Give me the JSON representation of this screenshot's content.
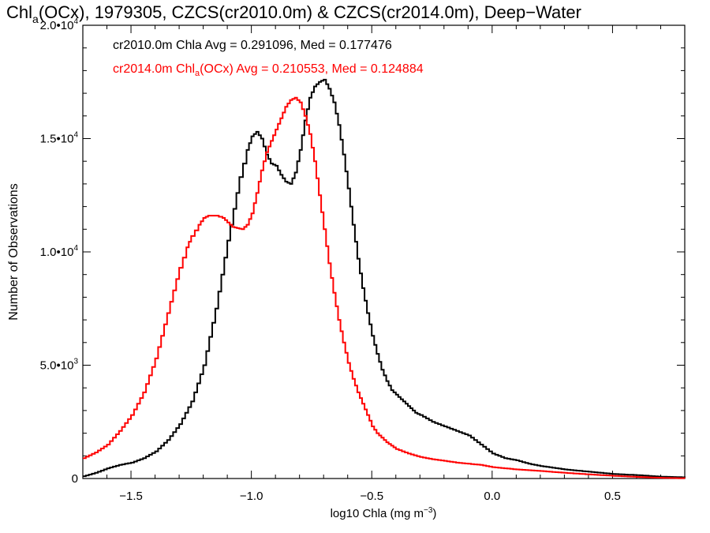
{
  "chart_data": {
    "type": "line",
    "title_parts": {
      "pre": "Chl",
      "sub": "a",
      "post": "(OCx), 1979305, CZCS(cr2010.0m) & CZCS(cr2014.0m), Deep−Water"
    },
    "xlabel_parts": {
      "pre": "log10 Chla (mg m",
      "sup": "−3",
      "post": ")"
    },
    "ylabel": "Number of Observations",
    "xlim": [
      -1.7,
      0.8
    ],
    "ylim": [
      0,
      20000
    ],
    "x_ticks": [
      {
        "value": -1.5,
        "label": "−1.5"
      },
      {
        "value": -1.0,
        "label": "−1.0"
      },
      {
        "value": -0.5,
        "label": "−0.5"
      },
      {
        "value": 0.0,
        "label": "0.0"
      },
      {
        "value": 0.5,
        "label": "0.5"
      }
    ],
    "x_minor_step": 0.1,
    "y_ticks": [
      {
        "value": 0,
        "base": "0",
        "exp": ""
      },
      {
        "value": 5000,
        "base": "5.0•10",
        "exp": "3"
      },
      {
        "value": 10000,
        "base": "1.0•10",
        "exp": "4"
      },
      {
        "value": 15000,
        "base": "1.5•10",
        "exp": "4"
      },
      {
        "value": 20000,
        "base": "2.0•10",
        "exp": "4"
      }
    ],
    "y_minor_step": 1000,
    "annotations": [
      {
        "pre": "cr2010.0m Chla Avg = 0.291096, Med = 0.177476",
        "sub": "",
        "post": "",
        "color": "#000000"
      },
      {
        "pre": "cr2014.0m Chl",
        "sub": "a",
        "post": "(OCx) Avg = 0.210553, Med = 0.124884",
        "color": "#ff0000"
      }
    ],
    "series": [
      {
        "color": "#000000",
        "x": [
          -1.7,
          -1.65,
          -1.6,
          -1.55,
          -1.5,
          -1.45,
          -1.4,
          -1.35,
          -1.3,
          -1.25,
          -1.2,
          -1.15,
          -1.1,
          -1.05,
          -1.02,
          -1.0,
          -0.98,
          -0.96,
          -0.94,
          -0.92,
          -0.9,
          -0.88,
          -0.86,
          -0.84,
          -0.82,
          -0.8,
          -0.78,
          -0.76,
          -0.74,
          -0.72,
          -0.7,
          -0.68,
          -0.66,
          -0.64,
          -0.62,
          -0.6,
          -0.58,
          -0.56,
          -0.54,
          -0.52,
          -0.5,
          -0.48,
          -0.46,
          -0.44,
          -0.42,
          -0.4,
          -0.38,
          -0.36,
          -0.34,
          -0.32,
          -0.3,
          -0.25,
          -0.2,
          -0.15,
          -0.1,
          -0.05,
          0.0,
          0.05,
          0.1,
          0.15,
          0.2,
          0.3,
          0.4,
          0.5,
          0.6,
          0.7,
          0.8
        ],
        "y": [
          100,
          250,
          450,
          600,
          700,
          900,
          1200,
          1700,
          2400,
          3400,
          5000,
          7500,
          10500,
          13300,
          14500,
          15100,
          15300,
          15000,
          14300,
          13900,
          13800,
          13400,
          13100,
          13000,
          13500,
          14500,
          15800,
          16800,
          17300,
          17500,
          17600,
          17200,
          16600,
          15600,
          14300,
          12800,
          11200,
          9700,
          8400,
          7300,
          6300,
          5500,
          4800,
          4300,
          3900,
          3700,
          3500,
          3300,
          3100,
          2900,
          2800,
          2500,
          2300,
          2100,
          1900,
          1500,
          1100,
          900,
          800,
          650,
          550,
          400,
          300,
          200,
          150,
          80,
          50
        ]
      },
      {
        "color": "#ff0000",
        "x": [
          -1.7,
          -1.65,
          -1.6,
          -1.55,
          -1.5,
          -1.45,
          -1.4,
          -1.35,
          -1.3,
          -1.27,
          -1.25,
          -1.22,
          -1.2,
          -1.18,
          -1.15,
          -1.12,
          -1.1,
          -1.08,
          -1.06,
          -1.04,
          -1.02,
          -1.0,
          -0.98,
          -0.96,
          -0.94,
          -0.92,
          -0.9,
          -0.88,
          -0.86,
          -0.84,
          -0.82,
          -0.8,
          -0.78,
          -0.76,
          -0.74,
          -0.72,
          -0.7,
          -0.68,
          -0.66,
          -0.64,
          -0.62,
          -0.6,
          -0.58,
          -0.56,
          -0.54,
          -0.52,
          -0.5,
          -0.48,
          -0.46,
          -0.44,
          -0.42,
          -0.4,
          -0.35,
          -0.3,
          -0.25,
          -0.2,
          -0.15,
          -0.1,
          -0.05,
          0.0,
          0.05,
          0.1,
          0.2,
          0.3,
          0.4,
          0.5,
          0.6,
          0.7,
          0.8
        ],
        "y": [
          900,
          1150,
          1500,
          2100,
          2800,
          3800,
          5300,
          7300,
          9300,
          10200,
          10700,
          11200,
          11500,
          11600,
          11600,
          11500,
          11300,
          11100,
          11050,
          11000,
          11200,
          11700,
          12600,
          13600,
          14400,
          14900,
          15400,
          15900,
          16400,
          16700,
          16800,
          16600,
          16000,
          15200,
          14000,
          12500,
          11000,
          9500,
          8200,
          7000,
          6000,
          5100,
          4400,
          3800,
          3300,
          2800,
          2300,
          2000,
          1800,
          1600,
          1450,
          1300,
          1100,
          950,
          850,
          780,
          700,
          650,
          600,
          500,
          450,
          400,
          330,
          250,
          180,
          120,
          70,
          30,
          10
        ]
      }
    ]
  }
}
